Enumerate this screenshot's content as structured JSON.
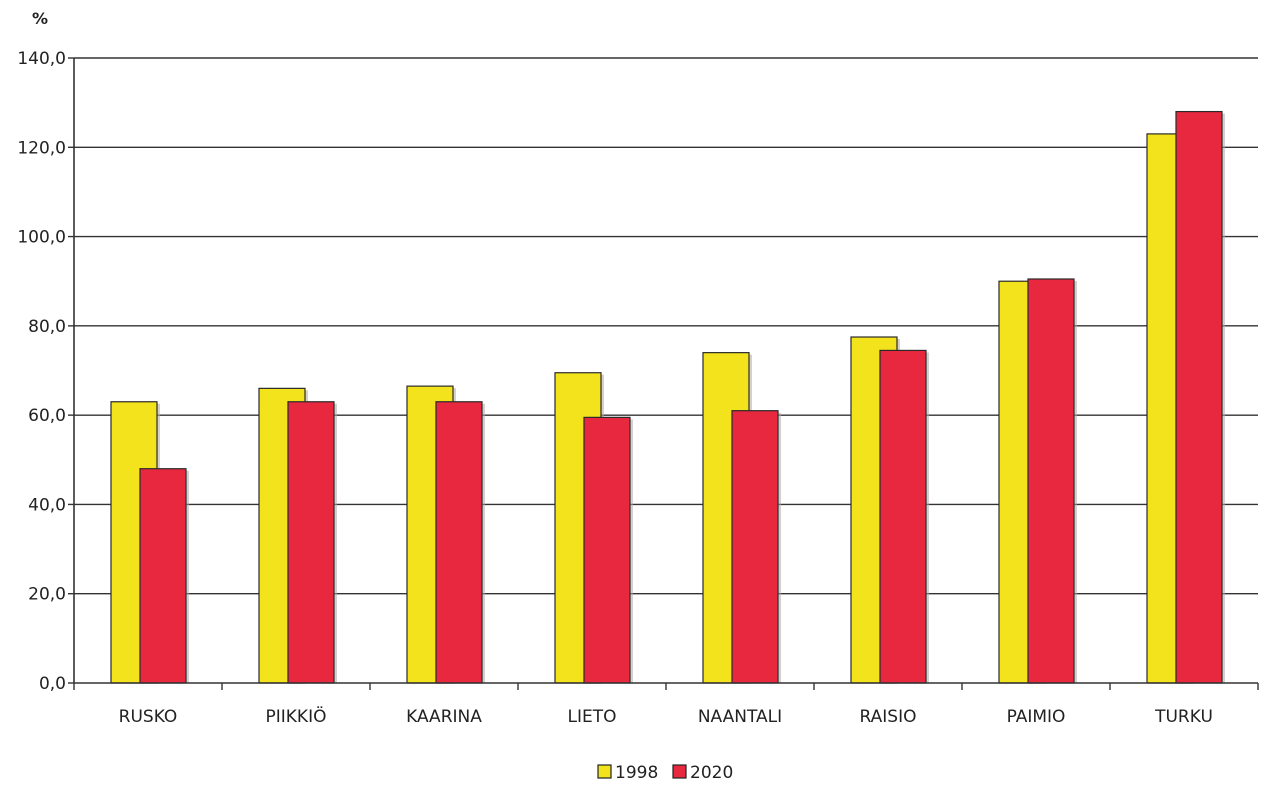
{
  "chart_data": {
    "type": "bar",
    "ylabel": "%",
    "ylim": [
      0,
      140
    ],
    "yticks": [
      "0,0",
      "20,0",
      "40,0",
      "60,0",
      "80,0",
      "100,0",
      "120,0",
      "140,0"
    ],
    "grid": true,
    "legend_position": "bottom",
    "categories": [
      "RUSKO",
      "PIIKKIÖ",
      "KAARINA",
      "LIETO",
      "NAANTALI",
      "RAISIO",
      "PAIMIO",
      "TURKU"
    ],
    "series": [
      {
        "name": "1998",
        "color": "#f2e31c",
        "values": [
          63,
          66,
          66.5,
          69.5,
          74,
          77.5,
          90,
          123
        ]
      },
      {
        "name": "2020",
        "color": "#e8283e",
        "values": [
          48,
          63,
          63,
          59.5,
          61,
          74.5,
          90.5,
          128
        ]
      }
    ]
  }
}
